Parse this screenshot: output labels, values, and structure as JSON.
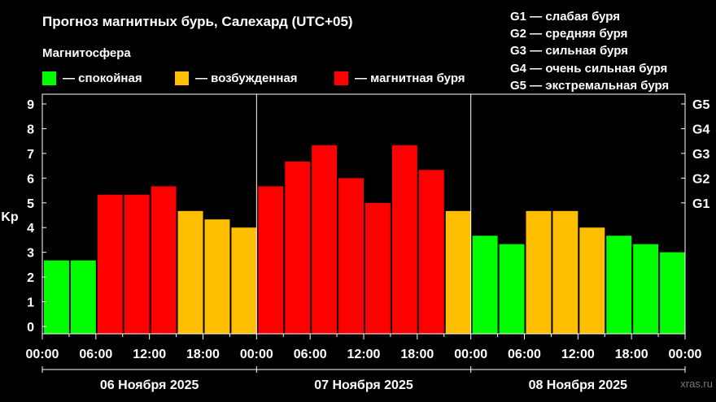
{
  "chart_data": {
    "type": "bar",
    "title": "Прогноз магнитных бурь, Салехард (UTC+05)",
    "subtitle": "Магнитосфера",
    "ylabel": "Kp",
    "ylim": [
      0,
      9
    ],
    "yticks": [
      "0",
      "1",
      "2",
      "3",
      "4",
      "5",
      "6",
      "7",
      "8",
      "9"
    ],
    "right_axis_labels": [
      {
        "label": "G1",
        "kp": 5
      },
      {
        "label": "G2",
        "kp": 6
      },
      {
        "label": "G3",
        "kp": 7
      },
      {
        "label": "G4",
        "kp": 8
      },
      {
        "label": "G5",
        "kp": 9
      }
    ],
    "x_tick_labels": [
      "00:00",
      "06:00",
      "12:00",
      "18:00",
      "00:00",
      "06:00",
      "12:00",
      "18:00",
      "00:00",
      "06:00",
      "12:00",
      "18:00",
      "00:00"
    ],
    "days": [
      "06 Ноября 2025",
      "07 Ноября 2025",
      "08 Ноября 2025"
    ],
    "colors": {
      "calm": "#00ff00",
      "excited": "#ffbf00",
      "storm": "#ff0000"
    },
    "legend": [
      {
        "key": "calm",
        "label": "— спокойная"
      },
      {
        "key": "excited",
        "label": "— возбужденная"
      },
      {
        "key": "storm",
        "label": "— магнитная буря"
      }
    ],
    "values": [
      2.67,
      2.67,
      5.33,
      5.33,
      5.67,
      4.67,
      4.33,
      4.0,
      5.67,
      6.67,
      7.33,
      6.0,
      5.0,
      7.33,
      6.33,
      4.67,
      3.67,
      3.33,
      4.67,
      4.67,
      4.0,
      3.67,
      3.33,
      3.0,
      3.0
    ],
    "bar_status": [
      "calm",
      "calm",
      "storm",
      "storm",
      "storm",
      "excited",
      "excited",
      "excited",
      "storm",
      "storm",
      "storm",
      "storm",
      "storm",
      "storm",
      "storm",
      "excited",
      "calm",
      "calm",
      "excited",
      "excited",
      "excited",
      "calm",
      "calm",
      "calm",
      "calm"
    ],
    "g_legend": [
      "G1 — слабая буря",
      "G2 — средняя буря",
      "G3 — сильная буря",
      "G4 — очень сильная буря",
      "G5 — экстремальная буря"
    ]
  },
  "watermark": "xras.ru"
}
